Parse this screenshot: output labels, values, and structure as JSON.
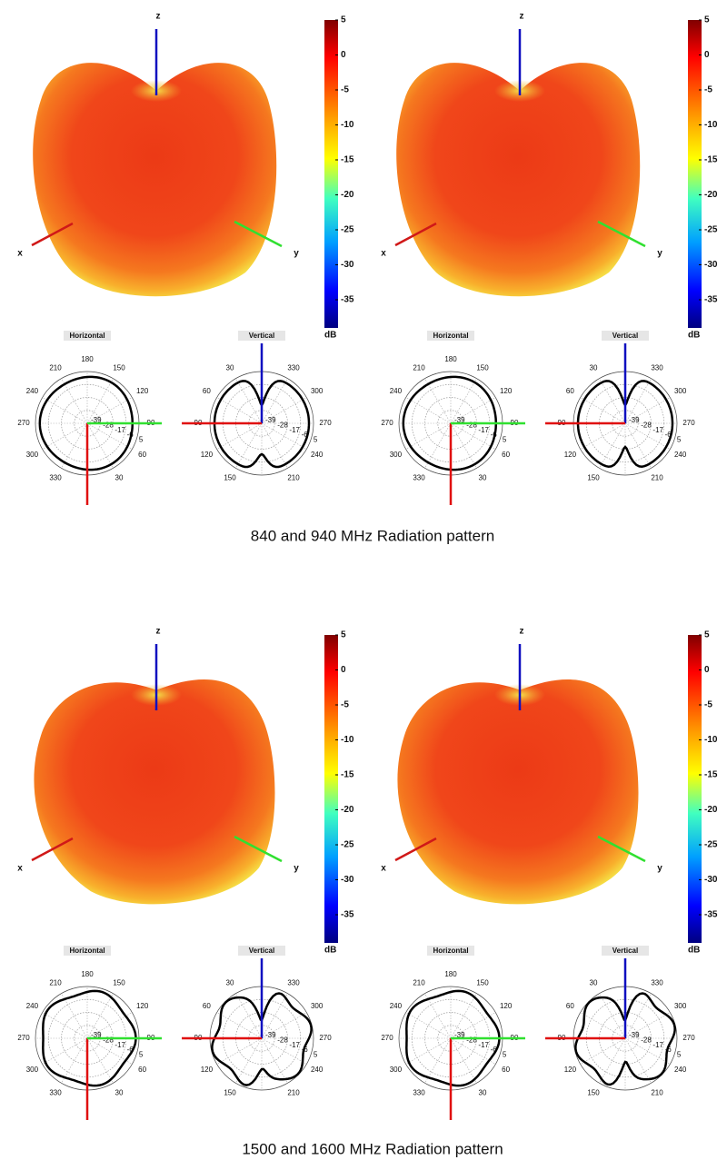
{
  "axes": [
    "x",
    "y",
    "z"
  ],
  "colorbar": {
    "ticks": [
      5,
      0,
      -5,
      -10,
      -15,
      -20,
      -25,
      -30,
      -35
    ],
    "unit": "dB"
  },
  "horizontal": {
    "title": "Horizontal",
    "angles": [
      180,
      150,
      120,
      90,
      60,
      30,
      330,
      300,
      270,
      240,
      210
    ]
  },
  "vertical": {
    "title": "Vertical",
    "angles": [
      330,
      300,
      270,
      240,
      210,
      150,
      120,
      90,
      60,
      30
    ]
  },
  "radii": [
    -39,
    -28,
    -17,
    -6,
    5
  ],
  "captions": [
    "840 and 940 MHz Radiation pattern",
    "1500 and 1600 MHz Radiation pattern"
  ]
}
